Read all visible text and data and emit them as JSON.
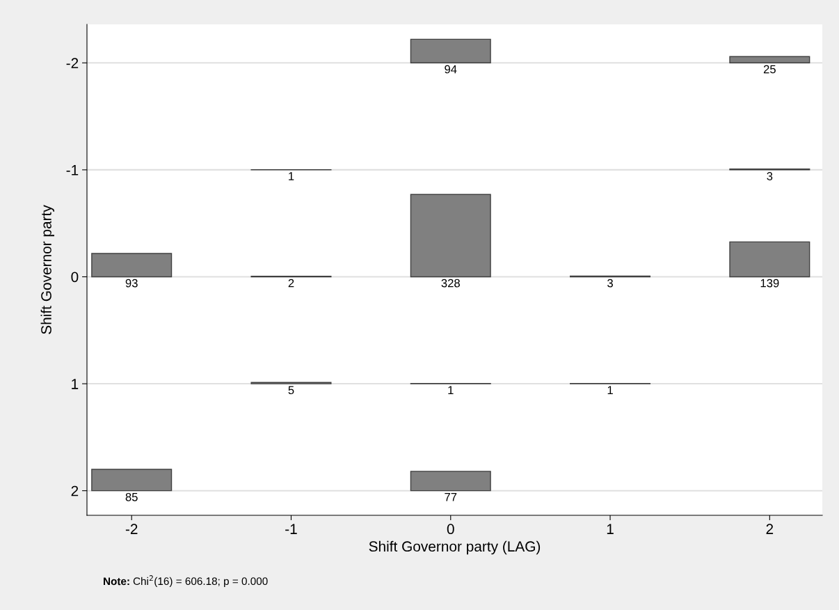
{
  "chart_data": {
    "type": "bar",
    "xlabel": "Shift Governor party (LAG)",
    "ylabel": "Shift Governor party",
    "categories": [
      "-2",
      "-1",
      "0",
      "1",
      "2"
    ],
    "ylim": [
      2.23,
      -2.36
    ],
    "yticks": [
      -2,
      -1,
      0,
      1,
      2
    ],
    "series": [
      {
        "color": "#808080",
        "base": [
          null,
          null,
          -2,
          null,
          -2
        ],
        "values": [
          null,
          null,
          -0.221,
          null,
          -0.059
        ]
      },
      {
        "color": "#808080",
        "base": [
          null,
          -1,
          null,
          null,
          -1
        ],
        "values": [
          null,
          -0.002,
          null,
          null,
          -0.007
        ]
      },
      {
        "color": "#808080",
        "base": [
          0,
          0,
          0,
          0,
          0
        ],
        "values": [
          -0.218,
          -0.005,
          -0.77,
          -0.007,
          -0.326
        ]
      },
      {
        "color": "#808080",
        "base": [
          null,
          1,
          1,
          1,
          null
        ],
        "values": [
          null,
          -0.012,
          -0.002,
          -0.002,
          null
        ]
      },
      {
        "color": "#808080",
        "base": [
          2,
          null,
          2,
          null,
          null
        ],
        "values": [
          -0.2,
          null,
          -0.181,
          null,
          null
        ]
      }
    ],
    "grid": "y",
    "annotations": [
      {
        "text": "94",
        "x": "0",
        "y": -2
      },
      {
        "text": "25",
        "x": "2",
        "y": -2
      },
      {
        "text": "1",
        "x": "-1",
        "y": -1
      },
      {
        "text": "3",
        "x": "2",
        "y": -1
      },
      {
        "text": "93",
        "x": "-2",
        "y": 0
      },
      {
        "text": "2",
        "x": "-1",
        "y": 0
      },
      {
        "text": "328",
        "x": "0",
        "y": 0
      },
      {
        "text": "3",
        "x": "1",
        "y": 0
      },
      {
        "text": "139",
        "x": "2",
        "y": 0
      },
      {
        "text": "5",
        "x": "-1",
        "y": 1
      },
      {
        "text": "1",
        "x": "0",
        "y": 1
      },
      {
        "text": "1",
        "x": "1",
        "y": 1
      },
      {
        "text": "85",
        "x": "-2",
        "y": 2
      },
      {
        "text": "77",
        "x": "0",
        "y": 2
      },
      "Note: Chi$^{2}$(16) = 606.18; p = 0.000"
    ]
  }
}
